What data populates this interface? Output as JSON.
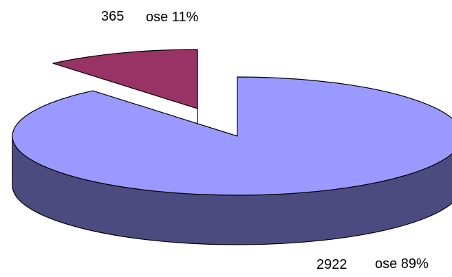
{
  "chart_data": {
    "type": "pie",
    "three_d": true,
    "exploded": true,
    "title": "",
    "slices": [
      {
        "category": "ose",
        "value": 2922,
        "percent_label": "89%",
        "color_top": "#9999FF",
        "color_side": "#4B4B7F"
      },
      {
        "category": "ose",
        "value": 365,
        "percent_label": "11%",
        "color_top": "#993366",
        "color_side": "#4C1A33"
      }
    ],
    "labels": [
      {
        "value_text": "2922",
        "category_text": "ose 89%"
      },
      {
        "value_text": "365",
        "category_text": "ose 11%"
      }
    ]
  }
}
